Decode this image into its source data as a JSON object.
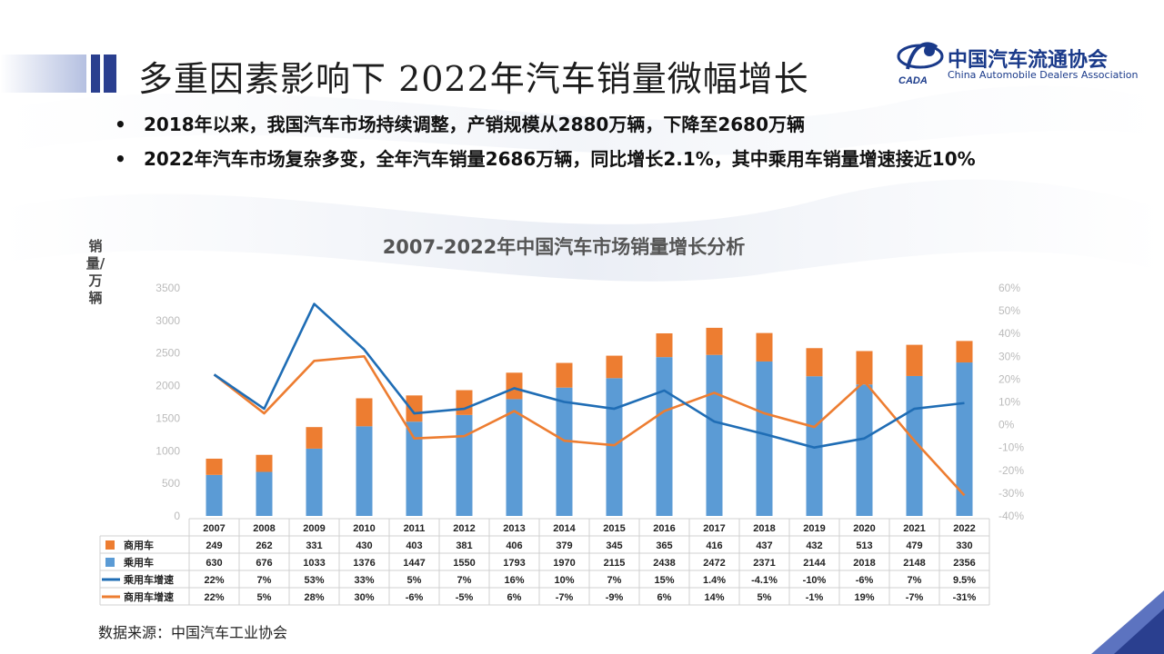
{
  "header": {
    "title": "多重因素影响下 2022年汽车销量微幅增长"
  },
  "logo": {
    "name_cn": "中国汽车流通协会",
    "name_en": "China Automobile Dealers Association",
    "mark_text": "CADA"
  },
  "bullets": [
    "2018年以来，我国汽车市场持续调整，产销规模从2880万辆，下降至2680万辆",
    "2022年汽车市场复杂多变，全年汽车销量2686万辆，同比增长2.1%，其中乘用车销量增速接近10%"
  ],
  "bullet_symbol": "•",
  "footer": {
    "source": "数据来源：中国汽车工业协会"
  },
  "colors": {
    "commercial": "#ED7D31",
    "passenger": "#5B9BD5",
    "passenger_growth": "#1F6DB5",
    "commercial_growth": "#ED7D31",
    "title_accent": "#2a3f8f"
  },
  "chart_data": {
    "type": "bar",
    "stacked": true,
    "title": "2007-2022年中国汽车市场销量增长分析",
    "ylabel": "销量/万辆",
    "ylim": [
      0,
      3500
    ],
    "y_ticks": [
      0,
      500,
      1000,
      1500,
      2000,
      2500,
      3000,
      3500
    ],
    "y_ticks_labels": [
      "0",
      "500",
      "1000",
      "1500",
      "2000",
      "2500",
      "3000",
      "3500"
    ],
    "y2lim": [
      -40,
      60
    ],
    "y2_ticks": [
      -40,
      -30,
      -20,
      -10,
      0,
      10,
      20,
      30,
      40,
      50,
      60
    ],
    "y2_ticks_labels": [
      "-40%",
      "-30%",
      "-20%",
      "-10%",
      "0%",
      "10%",
      "20%",
      "30%",
      "40%",
      "50%",
      "60%"
    ],
    "categories": [
      "2007",
      "2008",
      "2009",
      "2010",
      "2011",
      "2012",
      "2013",
      "2014",
      "2015",
      "2016",
      "2017",
      "2018",
      "2019",
      "2020",
      "2021",
      "2022"
    ],
    "series": [
      {
        "name": "商用车",
        "kind": "bar",
        "values": [
          249,
          262,
          331,
          430,
          403,
          381,
          406,
          379,
          345,
          365,
          416,
          437,
          432,
          513,
          479,
          330
        ],
        "labels": [
          "249",
          "262",
          "331",
          "430",
          "403",
          "381",
          "406",
          "379",
          "345",
          "365",
          "416",
          "437",
          "432",
          "513",
          "479",
          "330"
        ]
      },
      {
        "name": "乘用车",
        "kind": "bar",
        "values": [
          630,
          676,
          1033,
          1376,
          1447,
          1550,
          1793,
          1970,
          2115,
          2438,
          2472,
          2371,
          2144,
          2018,
          2148,
          2356
        ],
        "labels": [
          "630",
          "676",
          "1033",
          "1376",
          "1447",
          "1550",
          "1793",
          "1970",
          "2115",
          "2438",
          "2472",
          "2371",
          "2144",
          "2018",
          "2148",
          "2356"
        ]
      },
      {
        "name": "乘用车增速",
        "kind": "line",
        "axis": "right",
        "values": [
          22,
          7,
          53,
          33,
          5,
          7,
          16,
          10,
          7,
          15,
          1.4,
          -4.1,
          -10,
          -6,
          7,
          9.5
        ],
        "labels": [
          "22%",
          "7%",
          "53%",
          "33%",
          "5%",
          "7%",
          "16%",
          "10%",
          "7%",
          "15%",
          "1.4%",
          "-4.1%",
          "-10%",
          "-6%",
          "7%",
          "9.5%"
        ]
      },
      {
        "name": "商用车增速",
        "kind": "line",
        "axis": "right",
        "values": [
          22,
          5,
          28,
          30,
          -6,
          -5,
          6,
          -7,
          -9,
          6,
          14,
          5,
          -1,
          19,
          -7,
          -31
        ],
        "labels": [
          "22%",
          "5%",
          "28%",
          "30%",
          "-6%",
          "-5%",
          "6%",
          "-7%",
          "-9%",
          "6%",
          "14%",
          "5%",
          "-1%",
          "19%",
          "-7%",
          "-31%"
        ]
      }
    ],
    "legend": "table-bottom",
    "grid": false
  }
}
